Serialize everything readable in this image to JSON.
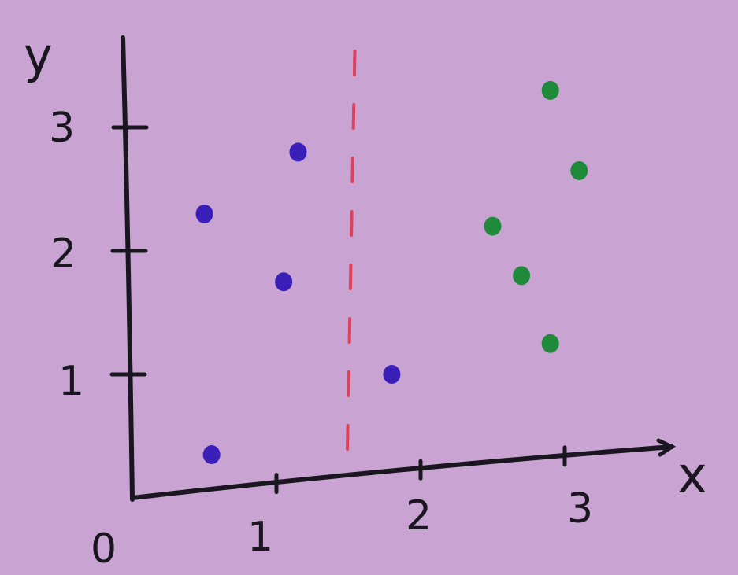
{
  "chart_data": {
    "type": "scatter",
    "title": "",
    "xlabel": "x",
    "ylabel": "y",
    "origin_label": "0",
    "x_ticks": [
      "1",
      "2",
      "3"
    ],
    "y_ticks": [
      "1",
      "2",
      "3"
    ],
    "xlim": [
      0,
      3.6
    ],
    "ylim": [
      0,
      3.6
    ],
    "grid": false,
    "legend": "none",
    "decision_boundary": {
      "x": 1.5,
      "style": "dashed",
      "color": "#e0405a"
    },
    "series": [
      {
        "color": "#3a1fb8",
        "points": [
          {
            "x": 0.5,
            "y": 2.3
          },
          {
            "x": 1.15,
            "y": 2.8
          },
          {
            "x": 1.05,
            "y": 1.75
          },
          {
            "x": 1.8,
            "y": 1.0
          },
          {
            "x": 0.55,
            "y": 0.35
          }
        ]
      },
      {
        "color": "#1f8a3a",
        "points": [
          {
            "x": 2.9,
            "y": 3.3
          },
          {
            "x": 3.1,
            "y": 2.65
          },
          {
            "x": 2.5,
            "y": 2.2
          },
          {
            "x": 2.7,
            "y": 1.8
          },
          {
            "x": 2.9,
            "y": 1.25
          }
        ]
      }
    ],
    "colors": {
      "paper": "#c9a4d3",
      "ink": "#1a1620"
    }
  }
}
